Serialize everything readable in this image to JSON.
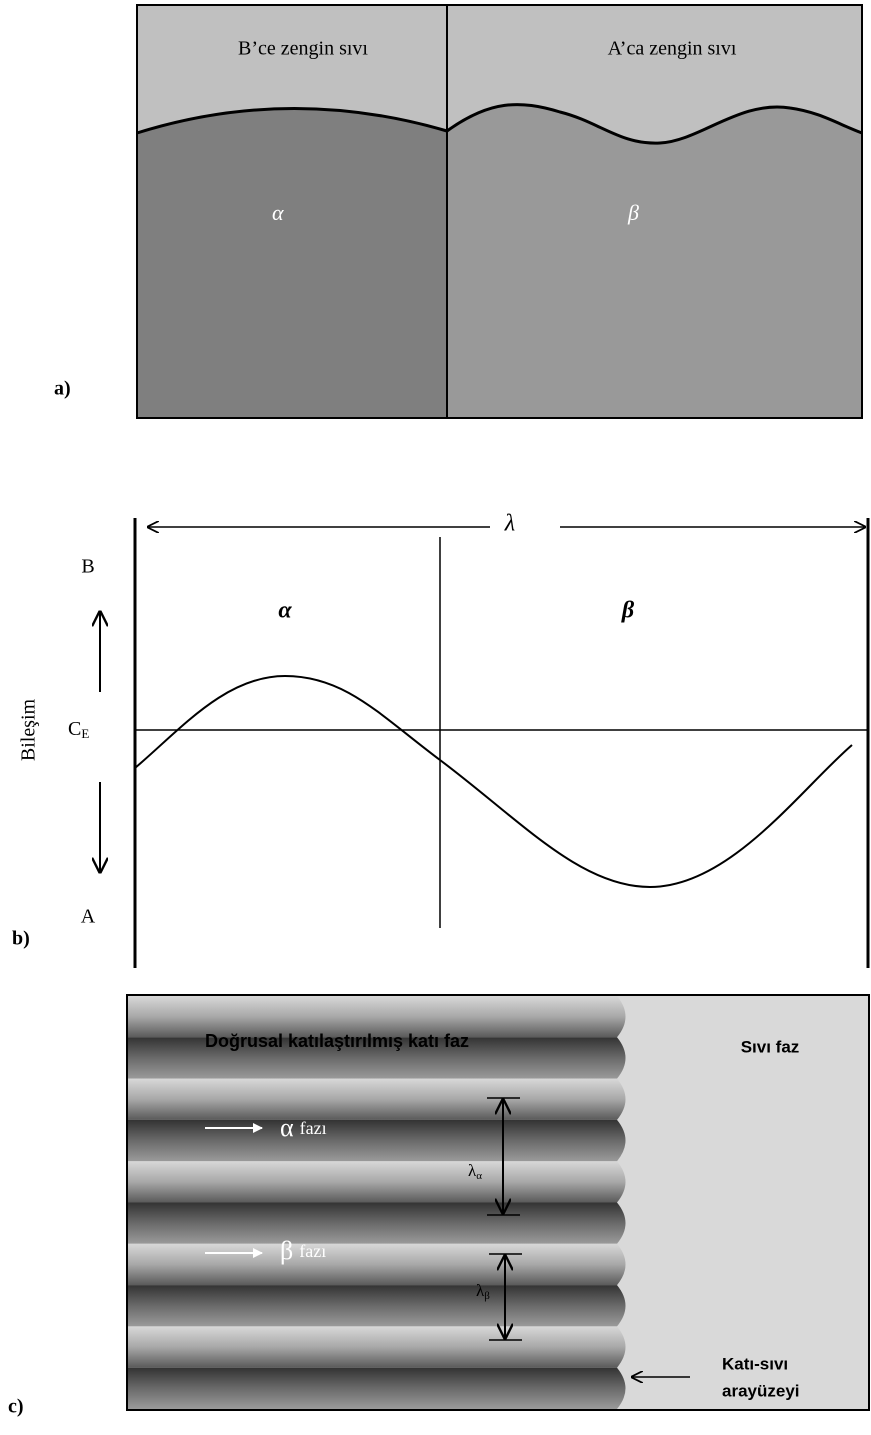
{
  "panel_a": {
    "label": "a)",
    "left_liquid": "B’ce zengin sıvı",
    "right_liquid": "A’ca zengin sıvı",
    "left_phase": "α",
    "right_phase": "β"
  },
  "panel_b": {
    "label": "b)",
    "wavelength": "λ",
    "left_phase": "α",
    "right_phase": "β",
    "top": "B",
    "bottom": "A",
    "axis": "Bileşim",
    "eutectic": {
      "main": "C",
      "sub": "E"
    }
  },
  "panel_c": {
    "label": "c)",
    "solid": "Doğrusal katılaştırılmış katı faz",
    "liquid": "Sıvı faz",
    "alpha_phase": {
      "symbol": "α",
      "word": "fazı"
    },
    "beta_phase": {
      "symbol": "β",
      "word": "fazı"
    },
    "lambda_alpha": {
      "main": "λ",
      "sub": "α"
    },
    "lambda_beta": {
      "main": "λ",
      "sub": "β"
    },
    "interface": [
      "Katı-sıvı",
      "arayüzeyi"
    ]
  }
}
